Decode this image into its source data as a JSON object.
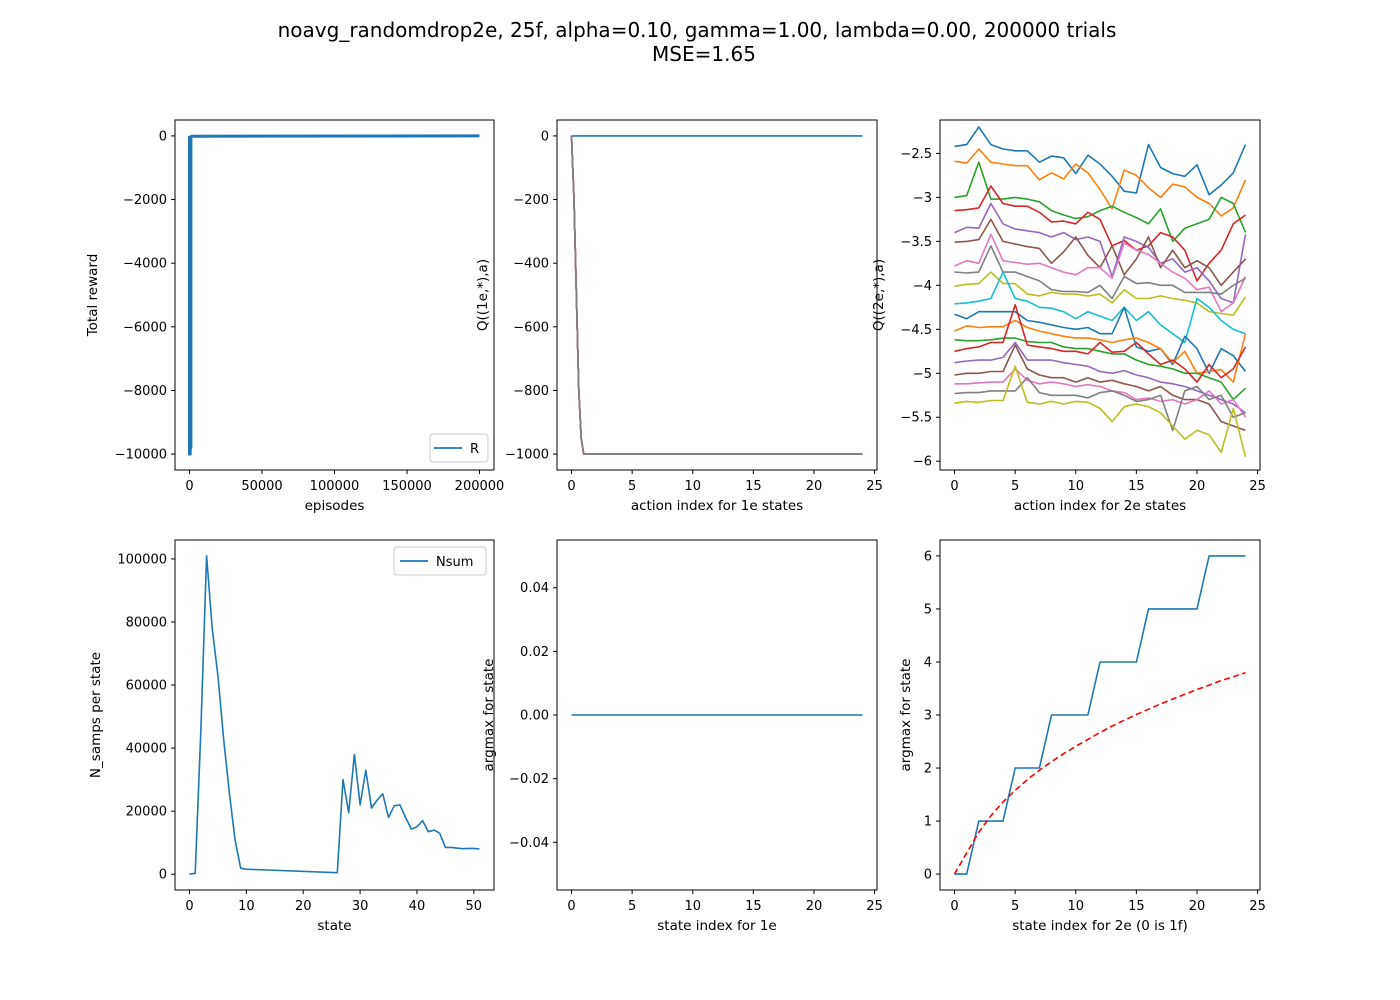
{
  "figure": {
    "title_line1": "noavg_randomdrop2e, 25f, alpha=0.10, gamma=1.00, lambda=0.00, 200000 trials",
    "title_line2": "MSE=1.65"
  },
  "colors": [
    "#1f77b4",
    "#ff7f0e",
    "#2ca02c",
    "#d62728",
    "#9467bd",
    "#8c564b",
    "#e377c2",
    "#7f7f7f",
    "#bcbd22",
    "#17becf"
  ],
  "chart_data": [
    {
      "id": "total-reward",
      "type": "line",
      "xlabel": "episodes",
      "ylabel": "Total reward",
      "xlim": [
        -10000,
        210000
      ],
      "ylim": [
        -10500,
        500
      ],
      "xticks": [
        0,
        50000,
        100000,
        150000,
        200000
      ],
      "yticks": [
        0,
        -2000,
        -4000,
        -6000,
        -8000,
        -10000
      ],
      "legend": {
        "position": "lower-right",
        "entries": [
          "R"
        ]
      },
      "series": [
        {
          "name": "R",
          "color": "#1f77b4",
          "width": 3,
          "x": [
            0,
            0,
            500,
            500,
            1000,
            1000,
            1500,
            2000,
            200000
          ],
          "y": [
            0,
            -10000,
            -10000,
            -50,
            -9800,
            -30,
            -10,
            -10,
            0
          ]
        }
      ]
    },
    {
      "id": "q-1e",
      "type": "line",
      "xlabel": "action index for 1e states",
      "ylabel": "Q((1e,*),a)",
      "xlim": [
        -1.2,
        25.2
      ],
      "ylim": [
        -1050,
        50
      ],
      "xticks": [
        0,
        5,
        10,
        15,
        20,
        25
      ],
      "yticks": [
        0,
        -200,
        -400,
        -600,
        -800,
        -1000
      ],
      "top_series": {
        "x": [
          0,
          24
        ],
        "y": [
          0,
          0
        ],
        "color": "#1f77b4"
      },
      "falling_series": {
        "x": [
          0,
          0.2,
          0.4,
          0.6,
          0.8,
          1,
          2,
          24
        ],
        "y": [
          0,
          -200,
          -500,
          -800,
          -950,
          -1000,
          -1000,
          -1000
        ],
        "colors": [
          "#1f77b4",
          "#ff7f0e",
          "#2ca02c",
          "#d62728",
          "#9467bd",
          "#8c564b",
          "#e377c2",
          "#7f7f7f"
        ]
      }
    },
    {
      "id": "q-2e",
      "type": "line",
      "xlabel": "action index for 2e states",
      "ylabel": "Q((2e,*),a)",
      "xlim": [
        -1.2,
        25.2
      ],
      "ylim": [
        -6.1,
        -2.12
      ],
      "xticks": [
        0,
        5,
        10,
        15,
        20,
        25
      ],
      "yticks": [
        -2.5,
        -3.0,
        -3.5,
        -4.0,
        -4.5,
        -5.0,
        -5.5,
        -6.0
      ],
      "x": [
        0,
        1,
        2,
        3,
        4,
        5,
        6,
        7,
        8,
        9,
        10,
        11,
        12,
        13,
        14,
        15,
        16,
        17,
        18,
        19,
        20,
        21,
        22,
        23,
        24
      ],
      "series": [
        {
          "color": "#1f77b4",
          "values": [
            -2.42,
            -2.4,
            -2.2,
            -2.4,
            -2.45,
            -2.47,
            -2.47,
            -2.6,
            -2.53,
            -2.55,
            -2.73,
            -2.52,
            -2.62,
            -2.76,
            -2.93,
            -2.95,
            -2.4,
            -2.66,
            -2.73,
            -2.76,
            -2.63,
            -2.97,
            -2.86,
            -2.72,
            -2.4
          ]
        },
        {
          "color": "#ff7f0e",
          "values": [
            -2.59,
            -2.61,
            -2.45,
            -2.6,
            -2.62,
            -2.64,
            -2.64,
            -2.8,
            -2.72,
            -2.79,
            -2.62,
            -2.72,
            -2.91,
            -3.13,
            -2.69,
            -2.75,
            -2.89,
            -3.0,
            -2.85,
            -2.88,
            -3.0,
            -3.07,
            -3.21,
            -3.12,
            -2.8
          ]
        },
        {
          "color": "#2ca02c",
          "values": [
            -3.0,
            -2.98,
            -2.6,
            -3.02,
            -3.02,
            -3.0,
            -3.02,
            -3.05,
            -3.15,
            -3.2,
            -3.24,
            -3.22,
            -3.15,
            -3.1,
            -3.17,
            -3.23,
            -3.3,
            -3.13,
            -3.5,
            -3.35,
            -3.3,
            -3.25,
            -3.0,
            -3.07,
            -3.4
          ]
        },
        {
          "color": "#d62728",
          "values": [
            -3.15,
            -3.14,
            -3.12,
            -2.87,
            -3.07,
            -3.1,
            -3.1,
            -3.17,
            -3.28,
            -3.27,
            -3.3,
            -3.17,
            -3.25,
            -3.55,
            -3.49,
            -3.6,
            -3.55,
            -3.4,
            -3.45,
            -3.6,
            -3.95,
            -3.75,
            -3.6,
            -3.3,
            -3.2
          ]
        },
        {
          "color": "#9467bd",
          "values": [
            -3.4,
            -3.34,
            -3.35,
            -3.07,
            -3.3,
            -3.36,
            -3.38,
            -3.4,
            -3.45,
            -3.4,
            -3.48,
            -3.45,
            -3.5,
            -3.9,
            -3.45,
            -3.5,
            -3.57,
            -3.75,
            -3.7,
            -3.85,
            -3.8,
            -3.95,
            -4.15,
            -4.2,
            -3.42
          ]
        },
        {
          "color": "#8c564b",
          "values": [
            -3.51,
            -3.5,
            -3.48,
            -3.25,
            -3.5,
            -3.53,
            -3.56,
            -3.58,
            -3.75,
            -3.62,
            -3.45,
            -3.66,
            -3.8,
            -3.55,
            -3.88,
            -3.7,
            -3.45,
            -3.8,
            -3.6,
            -3.8,
            -3.72,
            -3.8,
            -4.0,
            -3.85,
            -3.7
          ]
        },
        {
          "color": "#e377c2",
          "values": [
            -3.78,
            -3.72,
            -3.75,
            -3.42,
            -3.72,
            -3.74,
            -3.76,
            -3.75,
            -3.8,
            -3.85,
            -3.88,
            -3.8,
            -3.8,
            -3.92,
            -3.52,
            -3.6,
            -3.65,
            -3.75,
            -3.85,
            -3.92,
            -4.05,
            -4.02,
            -4.3,
            -4.2,
            -3.9
          ]
        },
        {
          "color": "#7f7f7f",
          "values": [
            -3.85,
            -3.86,
            -3.85,
            -3.55,
            -3.85,
            -3.85,
            -3.9,
            -3.95,
            -4.05,
            -4.07,
            -4.07,
            -4.08,
            -4.0,
            -4.15,
            -3.9,
            -3.98,
            -3.97,
            -4.0,
            -4.0,
            -4.08,
            -4.08,
            -4.08,
            -4.1,
            -4.0,
            -3.92
          ]
        },
        {
          "color": "#bcbd22",
          "values": [
            -4.01,
            -3.99,
            -3.98,
            -3.85,
            -3.98,
            -3.98,
            -4.1,
            -4.12,
            -4.08,
            -4.1,
            -4.1,
            -4.12,
            -4.1,
            -4.2,
            -4.05,
            -4.15,
            -4.15,
            -4.12,
            -4.15,
            -4.17,
            -4.2,
            -4.3,
            -4.32,
            -4.34,
            -4.13
          ]
        },
        {
          "color": "#17becf",
          "values": [
            -4.21,
            -4.2,
            -4.18,
            -4.15,
            -3.85,
            -4.15,
            -4.18,
            -4.25,
            -4.26,
            -4.3,
            -4.38,
            -4.3,
            -4.35,
            -4.4,
            -4.25,
            -4.4,
            -4.3,
            -4.45,
            -4.55,
            -4.65,
            -4.15,
            -4.25,
            -4.4,
            -4.5,
            -4.55
          ]
        },
        {
          "color": "#1f77b4",
          "values": [
            -4.33,
            -4.38,
            -4.3,
            -4.3,
            -4.3,
            -4.3,
            -4.4,
            -4.42,
            -4.45,
            -4.48,
            -4.5,
            -4.48,
            -4.55,
            -4.55,
            -4.25,
            -4.7,
            -4.75,
            -4.72,
            -4.9,
            -4.58,
            -4.72,
            -5.0,
            -4.72,
            -4.8,
            -4.98
          ]
        },
        {
          "color": "#ff7f0e",
          "values": [
            -4.52,
            -4.46,
            -4.48,
            -4.47,
            -4.47,
            -4.4,
            -4.48,
            -4.52,
            -4.55,
            -4.58,
            -4.6,
            -4.6,
            -4.62,
            -4.65,
            -4.62,
            -4.6,
            -4.65,
            -4.72,
            -4.88,
            -4.75,
            -5.0,
            -4.98,
            -4.96,
            -5.1,
            -4.55
          ]
        },
        {
          "color": "#2ca02c",
          "values": [
            -4.62,
            -4.63,
            -4.63,
            -4.62,
            -4.6,
            -4.6,
            -4.64,
            -4.65,
            -4.65,
            -4.7,
            -4.72,
            -4.72,
            -4.75,
            -4.78,
            -4.78,
            -4.85,
            -4.9,
            -4.92,
            -4.95,
            -5.0,
            -5.0,
            -5.05,
            -5.1,
            -5.3,
            -5.17
          ]
        },
        {
          "color": "#d62728",
          "values": [
            -4.75,
            -4.72,
            -4.7,
            -4.65,
            -4.65,
            -4.22,
            -4.68,
            -4.7,
            -4.72,
            -4.75,
            -4.75,
            -4.78,
            -4.65,
            -4.76,
            -4.75,
            -4.65,
            -4.78,
            -4.9,
            -4.85,
            -4.95,
            -5.1,
            -4.9,
            -5.05,
            -4.95,
            -4.7
          ]
        },
        {
          "color": "#9467bd",
          "values": [
            -4.88,
            -4.86,
            -4.85,
            -4.85,
            -4.82,
            -4.65,
            -4.85,
            -4.85,
            -4.85,
            -4.88,
            -4.9,
            -4.92,
            -4.98,
            -5.0,
            -4.97,
            -5.02,
            -5.05,
            -5.1,
            -5.12,
            -5.15,
            -5.2,
            -5.25,
            -5.3,
            -5.35,
            -5.45
          ]
        },
        {
          "color": "#8c564b",
          "values": [
            -5.02,
            -5.0,
            -5.0,
            -4.98,
            -4.98,
            -4.68,
            -4.95,
            -5.02,
            -5.05,
            -5.05,
            -5.1,
            -5.05,
            -5.1,
            -5.08,
            -5.12,
            -5.15,
            -5.2,
            -5.15,
            -5.25,
            -5.3,
            -5.3,
            -5.35,
            -5.55,
            -5.6,
            -5.65
          ]
        },
        {
          "color": "#e377c2",
          "values": [
            -5.12,
            -5.12,
            -5.11,
            -5.1,
            -5.1,
            -4.95,
            -5.08,
            -5.12,
            -5.1,
            -5.12,
            -5.15,
            -5.13,
            -5.15,
            -5.2,
            -5.22,
            -5.3,
            -5.28,
            -5.32,
            -5.3,
            -5.35,
            -5.3,
            -5.2,
            -5.35,
            -5.3,
            -5.5
          ]
        },
        {
          "color": "#7f7f7f",
          "values": [
            -5.23,
            -5.22,
            -5.22,
            -5.2,
            -5.2,
            -5.2,
            -5.05,
            -5.22,
            -5.25,
            -5.25,
            -5.25,
            -5.28,
            -5.22,
            -5.2,
            -5.25,
            -5.32,
            -5.3,
            -5.25,
            -5.65,
            -5.2,
            -5.15,
            -5.3,
            -5.25,
            -5.5,
            -5.45
          ]
        },
        {
          "color": "#bcbd22",
          "values": [
            -5.34,
            -5.32,
            -5.33,
            -5.31,
            -5.31,
            -4.92,
            -5.33,
            -5.35,
            -5.32,
            -5.35,
            -5.32,
            -5.33,
            -5.4,
            -5.55,
            -5.38,
            -5.35,
            -5.38,
            -5.45,
            -5.6,
            -5.75,
            -5.65,
            -5.7,
            -5.9,
            -5.4,
            -5.95
          ]
        }
      ]
    },
    {
      "id": "n-samps",
      "type": "line",
      "xlabel": "state",
      "ylabel": "N_samps per state",
      "xlim": [
        -2.55,
        53.55
      ],
      "ylim": [
        -5000,
        106000
      ],
      "xticks": [
        0,
        10,
        20,
        30,
        40,
        50
      ],
      "yticks": [
        0,
        20000,
        40000,
        60000,
        80000,
        100000
      ],
      "legend": {
        "position": "upper-right",
        "entries": [
          "Nsum"
        ]
      },
      "series": [
        {
          "name": "Nsum",
          "color": "#1f77b4",
          "x": [
            0,
            1,
            2,
            3,
            4,
            5,
            6,
            7,
            8,
            9,
            10,
            26,
            27,
            28,
            29,
            30,
            31,
            32,
            33,
            34,
            35,
            36,
            37,
            38,
            39,
            40,
            41,
            42,
            43,
            44,
            45,
            46,
            47,
            48,
            49,
            50,
            51
          ],
          "y": [
            0,
            300,
            46000,
            101000,
            78000,
            63000,
            43000,
            26000,
            11000,
            1900,
            1600,
            500,
            30000,
            19500,
            38000,
            22000,
            33000,
            21000,
            23500,
            25500,
            18000,
            21700,
            22000,
            18000,
            14300,
            15000,
            17000,
            13500,
            14000,
            13000,
            8500,
            8500,
            8300,
            8100,
            8200,
            8200,
            8000
          ]
        }
      ]
    },
    {
      "id": "argmax-1e",
      "type": "line",
      "xlabel": "state index for 1e",
      "ylabel": "argmax for state",
      "xlim": [
        -1.2,
        25.2
      ],
      "ylim": [
        -0.055,
        0.055
      ],
      "xticks": [
        0,
        5,
        10,
        15,
        20,
        25
      ],
      "yticks": [
        0.04,
        0.02,
        0.0,
        -0.02,
        -0.04
      ],
      "ytick_labels": [
        "0.04",
        "0.02",
        "0.00",
        "−0.02",
        "−0.04"
      ],
      "series": [
        {
          "color": "#1f77b4",
          "x": [
            0,
            24
          ],
          "y": [
            0,
            0
          ]
        }
      ]
    },
    {
      "id": "argmax-2e",
      "type": "line",
      "xlabel": "state index for 2e (0 is 1f)",
      "ylabel": "argmax for state",
      "xlim": [
        -1.2,
        25.2
      ],
      "ylim": [
        -0.3,
        6.3
      ],
      "xticks": [
        0,
        5,
        10,
        15,
        20,
        25
      ],
      "yticks": [
        0,
        1,
        2,
        3,
        4,
        5,
        6
      ],
      "series": [
        {
          "color": "#1f77b4",
          "dashed": false,
          "x": [
            0,
            1,
            2,
            3,
            4,
            5,
            6,
            7,
            8,
            9,
            10,
            11,
            12,
            13,
            14,
            15,
            16,
            17,
            18,
            19,
            20,
            21,
            22,
            23,
            24
          ],
          "y": [
            0,
            0,
            1,
            1,
            1,
            2,
            2,
            2,
            3,
            3,
            3,
            3,
            4,
            4,
            4,
            4,
            5,
            5,
            5,
            5,
            5,
            6,
            6,
            6,
            6
          ]
        },
        {
          "color": "#ff0000",
          "dashed": true,
          "x": [
            0,
            1,
            2,
            3,
            4,
            5,
            6,
            7,
            8,
            9,
            10,
            11,
            12,
            13,
            14,
            15,
            16,
            17,
            18,
            19,
            20,
            21,
            22,
            23,
            24
          ],
          "y": [
            0,
            0.4,
            0.79,
            1.1,
            1.36,
            1.58,
            1.78,
            1.96,
            2.12,
            2.27,
            2.41,
            2.54,
            2.67,
            2.79,
            2.9,
            3.01,
            3.11,
            3.21,
            3.3,
            3.39,
            3.48,
            3.56,
            3.65,
            3.72,
            3.8
          ]
        }
      ]
    }
  ]
}
